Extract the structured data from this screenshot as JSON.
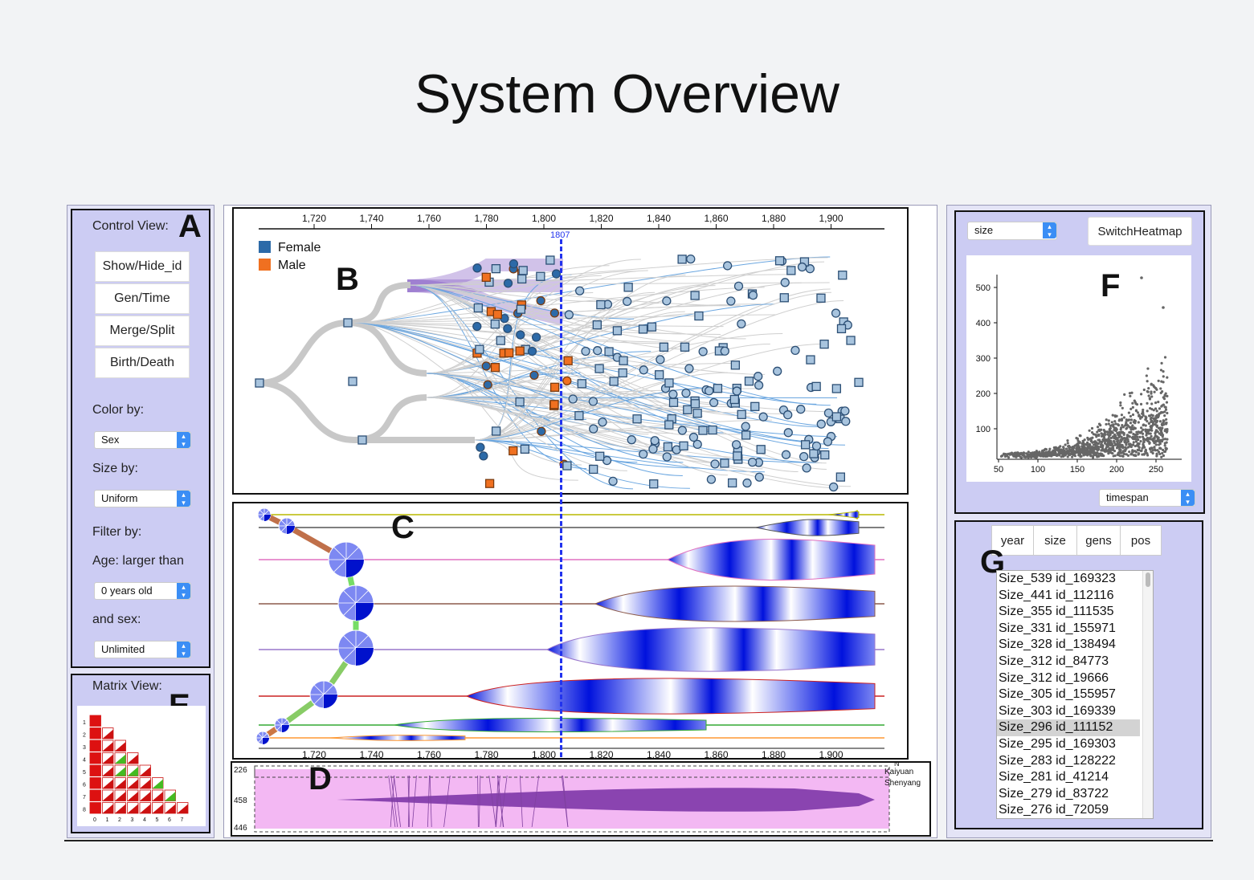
{
  "title": "System Overview",
  "panels": {
    "a": {
      "letter": "A",
      "heading": "Control View:",
      "buttons": [
        "Show/Hide_id",
        "Gen/Time",
        "Merge/Split",
        "Birth/Death"
      ],
      "color_by_label": "Color by:",
      "color_by_value": "Sex",
      "size_by_label": "Size by:",
      "size_by_value": "Uniform",
      "filter_label": "Filter by:",
      "age_label": "Age: larger than",
      "age_value": "0 years old",
      "sex_label": "and sex:",
      "sex_value": "Unlimited"
    },
    "b": {
      "letter": "B",
      "legend": [
        {
          "label": "Female",
          "color": "#2c6aa8"
        },
        {
          "label": "Male",
          "color": "#f07020"
        }
      ],
      "axis_ticks": [
        "1,720",
        "1,740",
        "1,760",
        "1,780",
        "1,800",
        "1,820",
        "1,840",
        "1,860",
        "1,880",
        "1,900"
      ],
      "marker_label": "1807"
    },
    "c": {
      "letter": "C",
      "axis_ticks": [
        "1,720",
        "1,740",
        "1,760",
        "1,780",
        "1,800",
        "1,820",
        "1,840",
        "1,860",
        "1,880",
        "1,900"
      ]
    },
    "d": {
      "letter": "D",
      "y_labels": [
        "226",
        "458",
        "446"
      ],
      "place_labels": [
        "Kaiyuan",
        "Shenyang"
      ],
      "north_label": "N"
    },
    "e": {
      "letter": "E",
      "heading": "Matrix View:",
      "row_labels": [
        "1",
        "2",
        "3",
        "4",
        "5",
        "6",
        "7",
        "8"
      ],
      "col_labels": [
        "0",
        "1",
        "2",
        "3",
        "4",
        "5",
        "6",
        "7"
      ]
    },
    "f": {
      "letter": "F",
      "select_value": "size",
      "switch_button": "SwitchHeatmap",
      "x_select_value": "timespan",
      "y_ticks": [
        "500",
        "400",
        "300",
        "200",
        "100"
      ],
      "x_ticks": [
        "50",
        "100",
        "150",
        "200",
        "250"
      ]
    },
    "g": {
      "letter": "G",
      "tabs": [
        "year",
        "size",
        "gens",
        "pos"
      ],
      "items": [
        "Size_539 id_169323",
        "Size_441 id_112116",
        "Size_355 id_111535",
        "Size_331 id_155971",
        "Size_328 id_138494",
        "Size_312 id_84773",
        "Size_312 id_19666",
        "Size_305 id_155957",
        "Size_303 id_169339",
        "Size_296 id_111152",
        "Size_295 id_169303",
        "Size_283 id_128222",
        "Size_281 id_41214",
        "Size_279 id_83722",
        "Size_276 id_72059"
      ],
      "selected_index": 9
    }
  },
  "colors": {
    "panel_fill": "#ccccf3",
    "female": "#2c6aa8",
    "male": "#f07020",
    "highlight": "#7b4fc0",
    "marker": "#2233ee",
    "geo_fill": "#f3b8f3",
    "geo_flow": "#8a44b0"
  }
}
